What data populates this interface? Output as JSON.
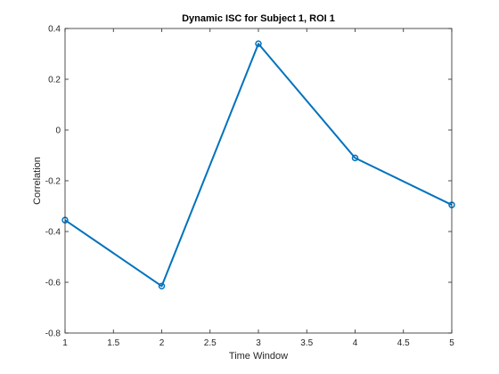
{
  "chart_data": {
    "type": "line",
    "title": "Dynamic ISC for Subject 1, ROI 1",
    "xlabel": "Time Window",
    "ylabel": "Correlation",
    "xlim": [
      1,
      5
    ],
    "ylim": [
      -0.8,
      0.4
    ],
    "xticks": [
      1,
      1.5,
      2,
      2.5,
      3,
      3.5,
      4,
      4.5,
      5
    ],
    "xtick_labels": [
      "1",
      "1.5",
      "2",
      "2.5",
      "3",
      "3.5",
      "4",
      "4.5",
      "5"
    ],
    "yticks": [
      -0.8,
      -0.6,
      -0.4,
      -0.2,
      0,
      0.2,
      0.4
    ],
    "ytick_labels": [
      "-0.8",
      "-0.6",
      "-0.4",
      "-0.2",
      "0",
      "0.2",
      "0.4"
    ],
    "grid": false,
    "legend": "none",
    "marker": "circle",
    "series": [
      {
        "color": "#0072bd",
        "x": [
          1,
          2,
          3,
          4,
          5
        ],
        "y": [
          -0.355,
          -0.615,
          0.34,
          -0.11,
          -0.295
        ]
      }
    ]
  }
}
